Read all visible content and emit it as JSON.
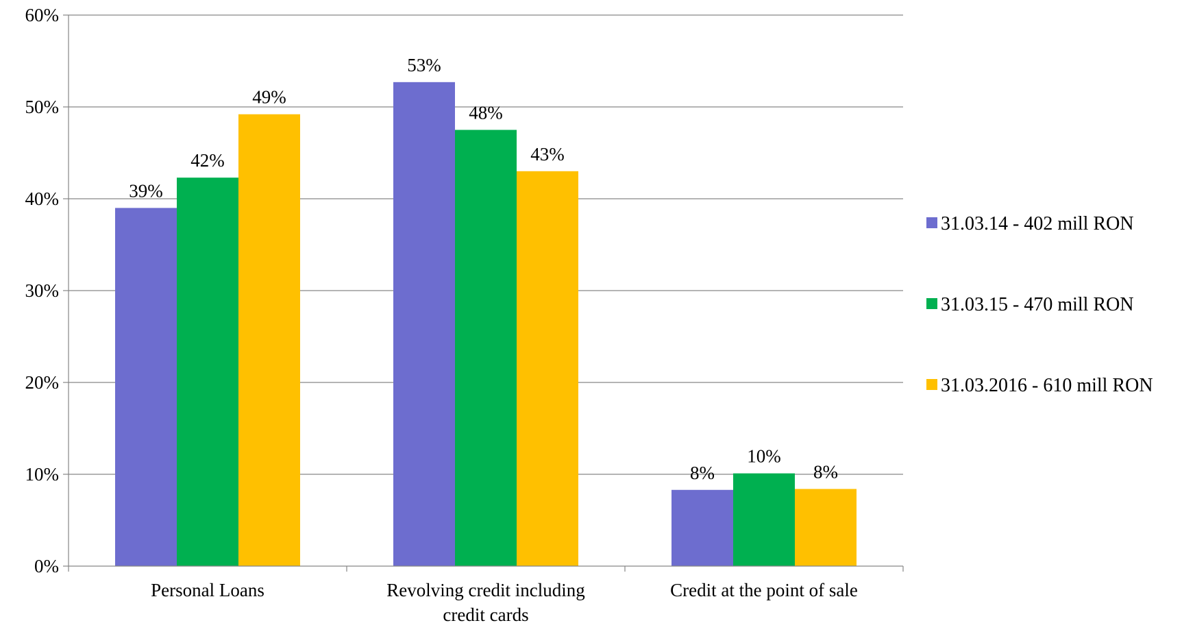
{
  "chart_data": {
    "type": "bar",
    "title": "",
    "xlabel": "",
    "ylabel": "",
    "categories": [
      [
        "Personal Loans"
      ],
      [
        "Revolving credit including",
        "credit cards"
      ],
      [
        "Credit at the point of sale"
      ]
    ],
    "series": [
      {
        "name": "31.03.14 - 402 mill RON",
        "color": "#6d6dcf",
        "values": [
          39,
          52.7,
          8.3
        ],
        "labels": [
          "39%",
          "53%",
          "8%"
        ]
      },
      {
        "name": "31.03.15 - 470 mill RON",
        "color": "#00b050",
        "values": [
          42.3,
          47.5,
          10.1
        ],
        "labels": [
          "42%",
          "48%",
          "10%"
        ]
      },
      {
        "name": "31.03.2016 - 610 mill RON",
        "color": "#ffc000",
        "values": [
          49.2,
          43,
          8.4
        ],
        "labels": [
          "49%",
          "43%",
          "8%"
        ]
      }
    ],
    "ylim": [
      0,
      60
    ],
    "yticks": [
      0,
      10,
      20,
      30,
      40,
      50,
      60
    ],
    "ytick_labels": [
      "0%",
      "10%",
      "20%",
      "30%",
      "40%",
      "50%",
      "60%"
    ],
    "grid": true,
    "legend_position": "right"
  }
}
